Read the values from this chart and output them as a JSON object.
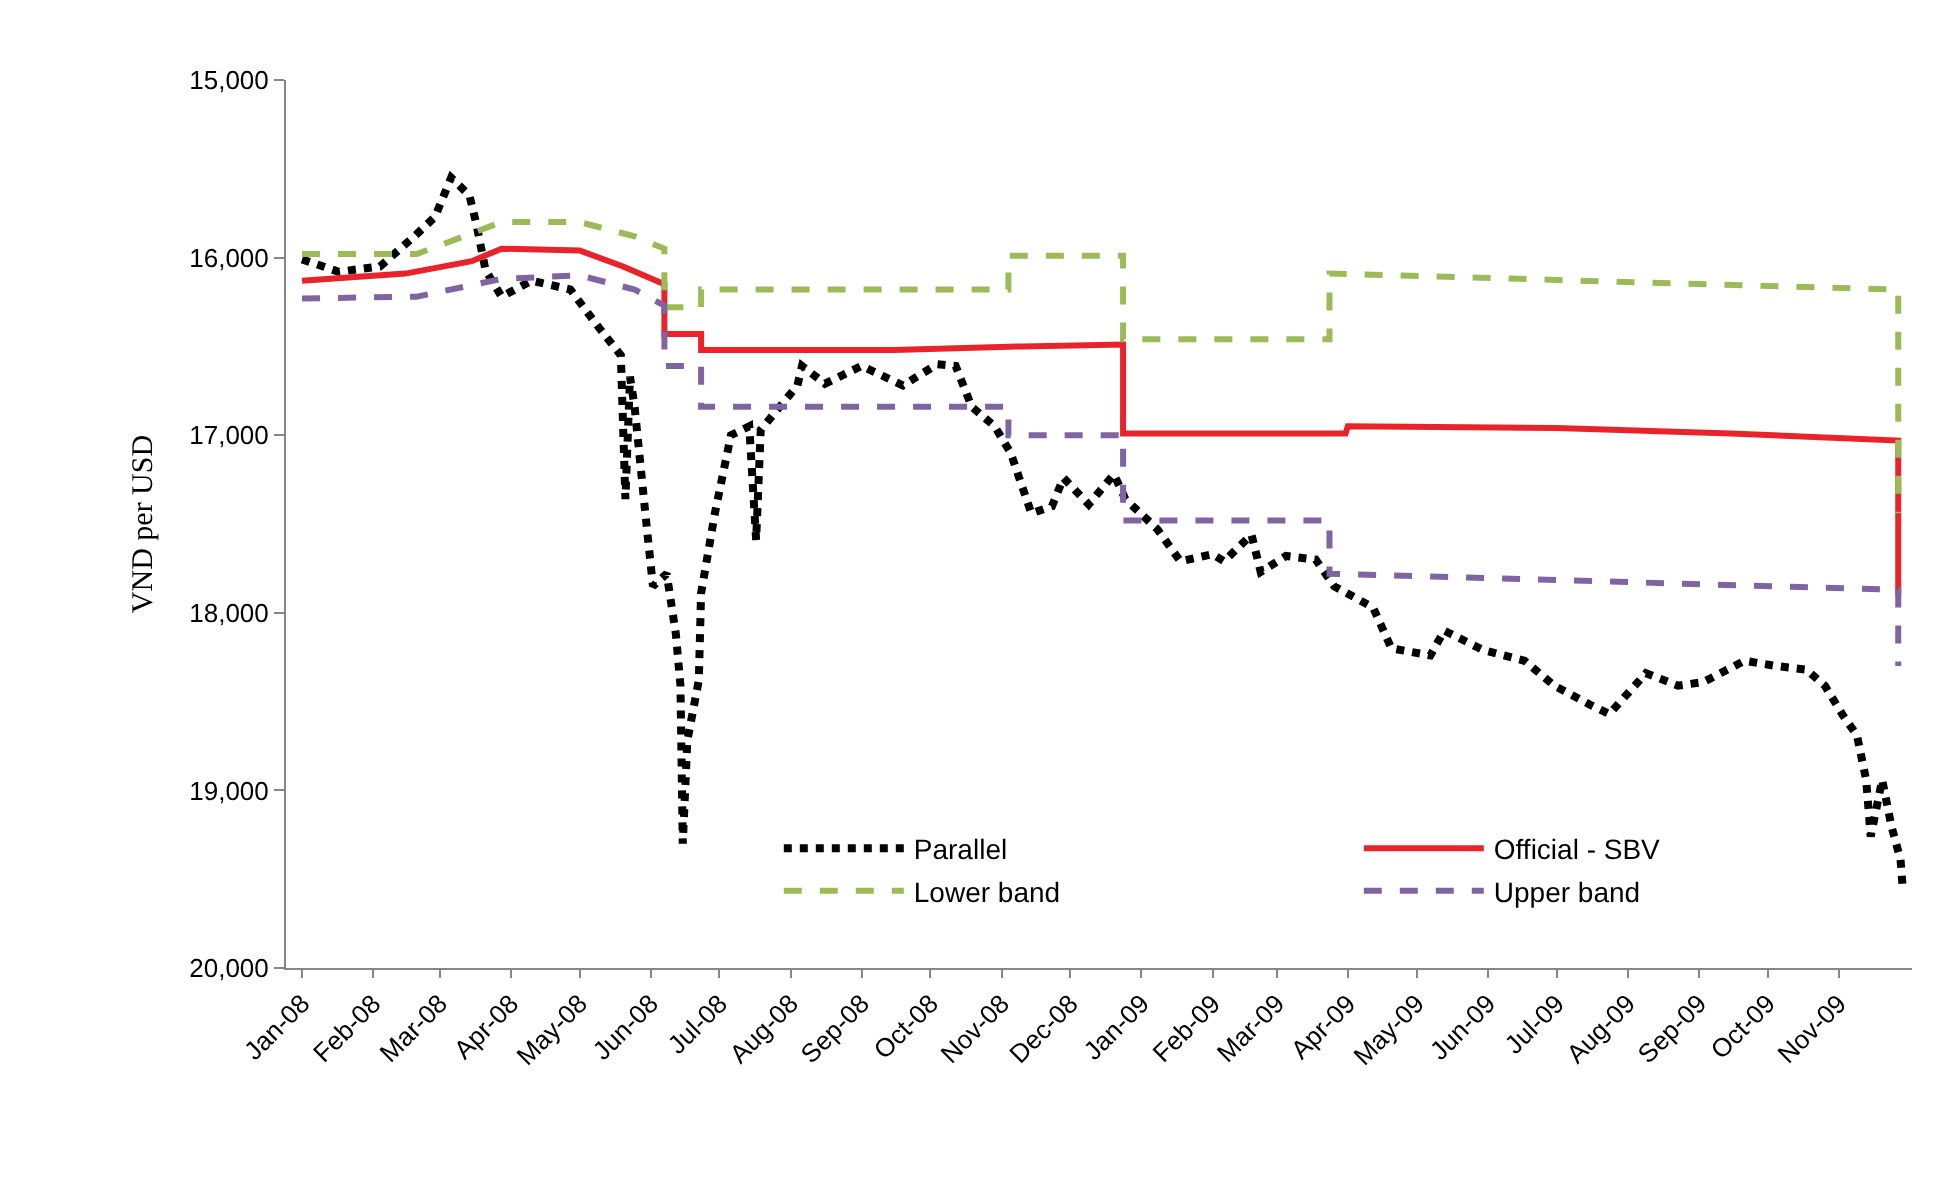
{
  "chart_data": {
    "type": "line",
    "ylabel": "VND per USD",
    "ylim": [
      20000,
      15000
    ],
    "yticks": [
      {
        "value": 15000,
        "label": "15,000"
      },
      {
        "value": 16000,
        "label": "16,000"
      },
      {
        "value": 17000,
        "label": "17,000"
      },
      {
        "value": 18000,
        "label": "18,000"
      },
      {
        "value": 19000,
        "label": "19,000"
      },
      {
        "value": 20000,
        "label": "20,000"
      }
    ],
    "xlim": [
      "2007-12-25",
      "2009-12-03"
    ],
    "xticks": [
      {
        "value": "2008-01-01",
        "label": "Jan-08"
      },
      {
        "value": "2008-02-01",
        "label": "Feb-08"
      },
      {
        "value": "2008-03-01",
        "label": "Mar-08"
      },
      {
        "value": "2008-04-01",
        "label": "Apr-08"
      },
      {
        "value": "2008-05-01",
        "label": "May-08"
      },
      {
        "value": "2008-06-01",
        "label": "Jun-08"
      },
      {
        "value": "2008-07-01",
        "label": "Jul-08"
      },
      {
        "value": "2008-08-01",
        "label": "Aug-08"
      },
      {
        "value": "2008-09-01",
        "label": "Sep-08"
      },
      {
        "value": "2008-10-01",
        "label": "Oct-08"
      },
      {
        "value": "2008-11-01",
        "label": "Nov-08"
      },
      {
        "value": "2008-12-01",
        "label": "Dec-08"
      },
      {
        "value": "2009-01-01",
        "label": "Jan-09"
      },
      {
        "value": "2009-02-01",
        "label": "Feb-09"
      },
      {
        "value": "2009-03-01",
        "label": "Mar-09"
      },
      {
        "value": "2009-04-01",
        "label": "Apr-09"
      },
      {
        "value": "2009-05-01",
        "label": "May-09"
      },
      {
        "value": "2009-06-01",
        "label": "Jun-09"
      },
      {
        "value": "2009-07-01",
        "label": "Jul-09"
      },
      {
        "value": "2009-08-01",
        "label": "Aug-09"
      },
      {
        "value": "2009-09-01",
        "label": "Sep-09"
      },
      {
        "value": "2009-10-01",
        "label": "Oct-09"
      },
      {
        "value": "2009-11-01",
        "label": "Nov-09"
      }
    ],
    "legend": "bottom",
    "marker": "none",
    "series": [
      {
        "name": "Parallel",
        "color": "#000000",
        "line_style": "dotted",
        "x": [
          "2008-01-01",
          "2008-01-17",
          "2008-02-04",
          "2008-02-19",
          "2008-02-28",
          "2008-03-06",
          "2008-03-14",
          "2008-03-17",
          "2008-03-21",
          "2008-03-28",
          "2008-04-10",
          "2008-04-27",
          "2008-05-08",
          "2008-05-19",
          "2008-05-21",
          "2008-05-23",
          "2008-05-25",
          "2008-05-30",
          "2008-06-02",
          "2008-06-08",
          "2008-06-12",
          "2008-06-14",
          "2008-06-15",
          "2008-06-17",
          "2008-06-22",
          "2008-06-23",
          "2008-06-29",
          "2008-07-06",
          "2008-07-14",
          "2008-07-17",
          "2008-07-19",
          "2008-08-04",
          "2008-08-06",
          "2008-08-16",
          "2008-09-01",
          "2008-09-19",
          "2008-10-04",
          "2008-10-12",
          "2008-10-19",
          "2008-10-29",
          "2008-11-05",
          "2008-11-14",
          "2008-11-23",
          "2008-11-28",
          "2008-12-09",
          "2008-12-20",
          "2008-12-25",
          "2009-01-08",
          "2009-01-18",
          "2009-02-01",
          "2009-02-06",
          "2009-02-18",
          "2009-02-22",
          "2009-03-05",
          "2009-03-18",
          "2009-03-26",
          "2009-04-12",
          "2009-04-20",
          "2009-05-07",
          "2009-05-13",
          "2009-05-30",
          "2009-06-17",
          "2009-06-30",
          "2009-07-16",
          "2009-07-24",
          "2009-08-09",
          "2009-08-23",
          "2009-09-03",
          "2009-09-21",
          "2009-10-05",
          "2009-10-18",
          "2009-10-26",
          "2009-11-03",
          "2009-11-09",
          "2009-11-13",
          "2009-11-15",
          "2009-11-20",
          "2009-11-24",
          "2009-11-28",
          "2009-11-29"
        ],
        "values": [
          16010,
          16080,
          16050,
          15880,
          15770,
          15550,
          15650,
          15810,
          16070,
          16220,
          16130,
          16180,
          16370,
          16550,
          17360,
          16670,
          16840,
          17480,
          17850,
          17780,
          18120,
          18410,
          19300,
          18720,
          18380,
          17890,
          17440,
          17000,
          16950,
          17590,
          16970,
          16720,
          16610,
          16710,
          16610,
          16720,
          16600,
          16610,
          16840,
          16950,
          17100,
          17440,
          17400,
          17240,
          17390,
          17220,
          17360,
          17530,
          17710,
          17670,
          17710,
          17560,
          17770,
          17680,
          17700,
          17850,
          17970,
          18200,
          18240,
          18100,
          18210,
          18270,
          18410,
          18520,
          18570,
          18340,
          18410,
          18390,
          18270,
          18300,
          18320,
          18410,
          18580,
          18690,
          18940,
          19260,
          18940,
          19200,
          19390,
          19560
        ]
      },
      {
        "name": "Official - SBV",
        "color": "#e8232a",
        "line_style": "solid",
        "x": [
          "2008-01-01",
          "2008-02-15",
          "2008-03-15",
          "2008-03-28",
          "2008-05-01",
          "2008-05-20",
          "2008-06-07",
          "2008-06-07",
          "2008-06-23",
          "2008-06-23",
          "2008-09-15",
          "2008-11-10",
          "2008-12-24",
          "2008-12-24",
          "2009-03-31",
          "2009-04-01",
          "2009-07-01",
          "2009-09-15",
          "2009-11-27",
          "2009-11-27"
        ],
        "values": [
          16130,
          16090,
          16020,
          15950,
          15960,
          16050,
          16150,
          16430,
          16430,
          16520,
          16520,
          16500,
          16490,
          16990,
          16990,
          16950,
          16960,
          16990,
          17030,
          17900
        ]
      },
      {
        "name": "Lower band",
        "color": "#9bbb59",
        "line_style": "dashed",
        "x": [
          "2008-01-01",
          "2008-02-20",
          "2008-03-28",
          "2008-05-01",
          "2008-05-25",
          "2008-06-07",
          "2008-06-07",
          "2008-06-23",
          "2008-06-23",
          "2008-11-04",
          "2008-11-04",
          "2008-12-24",
          "2008-12-24",
          "2009-03-24",
          "2009-03-24",
          "2009-11-27",
          "2009-11-27"
        ],
        "values": [
          15980,
          15980,
          15800,
          15800,
          15880,
          15950,
          16280,
          16280,
          16180,
          16180,
          15990,
          15990,
          16460,
          16460,
          16090,
          16180,
          17440
        ]
      },
      {
        "name": "Upper band",
        "color": "#8064a2",
        "line_style": "dashed",
        "x": [
          "2008-01-01",
          "2008-02-20",
          "2008-03-28",
          "2008-05-01",
          "2008-05-25",
          "2008-06-07",
          "2008-06-07",
          "2008-06-23",
          "2008-06-23",
          "2008-11-04",
          "2008-11-04",
          "2008-12-24",
          "2008-12-24",
          "2009-03-24",
          "2009-03-24",
          "2009-11-27",
          "2009-11-27"
        ],
        "values": [
          16230,
          16220,
          16120,
          16100,
          16180,
          16270,
          16610,
          16610,
          16840,
          16840,
          17000,
          17000,
          17480,
          17480,
          17780,
          17870,
          18300
        ]
      }
    ]
  }
}
